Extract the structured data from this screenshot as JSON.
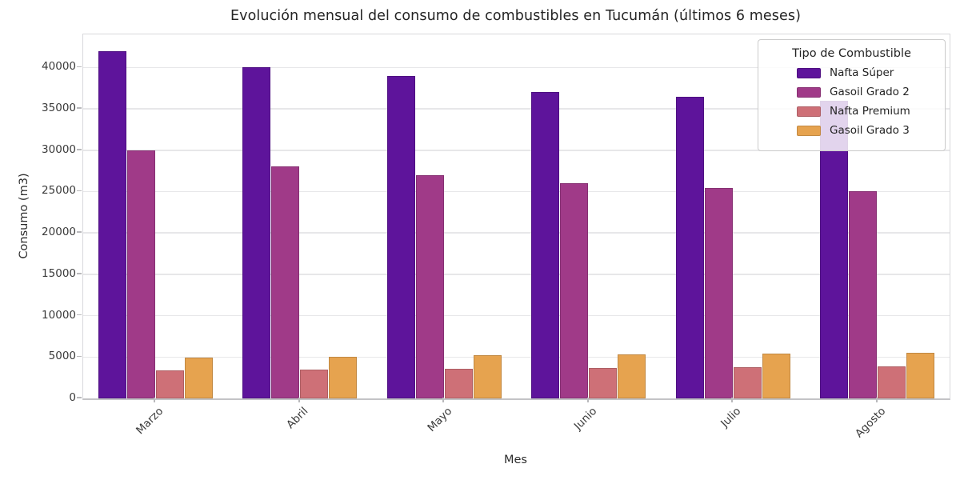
{
  "chart_data": {
    "type": "bar",
    "title": "Evolución mensual del consumo de combustibles en Tucumán (últimos 6 meses)",
    "xlabel": "Mes",
    "ylabel": "Consumo (m3)",
    "categories": [
      "Marzo",
      "Abril",
      "Mayo",
      "Junio",
      "Julio",
      "Agosto"
    ],
    "series": [
      {
        "name": "Nafta Súper",
        "color": "#5e149b",
        "values": [
          42000,
          40000,
          39000,
          37000,
          36500,
          36000
        ]
      },
      {
        "name": "Gasoil Grado 2",
        "color": "#a03a88",
        "values": [
          30000,
          28000,
          27000,
          26000,
          25400,
          25000
        ]
      },
      {
        "name": "Nafta Premium",
        "color": "#ce7077",
        "values": [
          3400,
          3500,
          3600,
          3700,
          3800,
          3900
        ]
      },
      {
        "name": "Gasoil Grado 3",
        "color": "#e6a34f",
        "values": [
          4900,
          5000,
          5200,
          5300,
          5400,
          5500
        ]
      }
    ],
    "legend": {
      "title": "Tipo de Combustible",
      "position": "upper right"
    },
    "ylim": [
      0,
      44000
    ],
    "yticks": [
      0,
      5000,
      10000,
      15000,
      20000,
      25000,
      30000,
      35000,
      40000
    ],
    "grid": true,
    "x_tick_rotation_deg": 45
  }
}
